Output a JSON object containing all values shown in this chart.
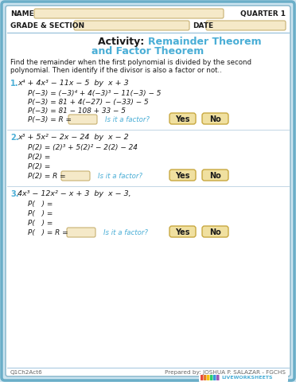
{
  "bg_color": "#cce4f0",
  "white": "#ffffff",
  "input_color": "#f5e9c8",
  "button_color": "#f0e0a0",
  "button_edge": "#c8a840",
  "blue": "#4aaed6",
  "black": "#1a1a1a",
  "gray": "#666666",
  "line_color": "#90bcd8",
  "title_line1": "Activity: Remainder Theorem",
  "title_line2": "and Factor Theorem",
  "instruction": "Find the remainder when the first polynomial is divided by the second\npolynomial. Then identify if the divisor is also a factor or not..",
  "footer_left": "Q1Ch2Act6",
  "footer_right": "Prepared by: JOSHUA P. SALAZAR - FGCHS"
}
